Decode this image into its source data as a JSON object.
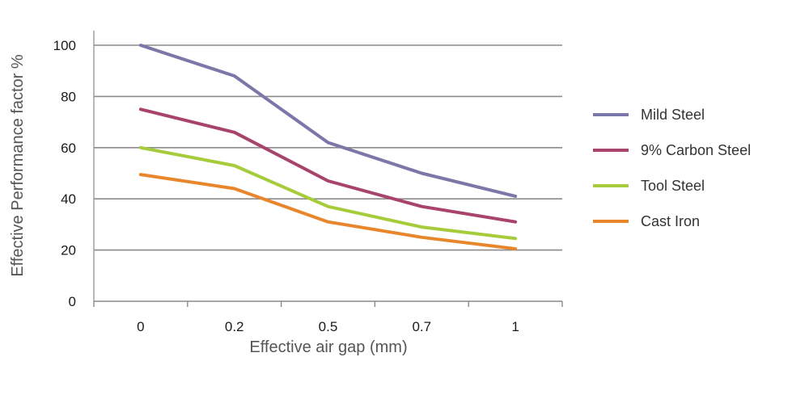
{
  "chart_data": {
    "type": "line",
    "title": "",
    "xlabel": "Effective air gap (mm)",
    "ylabel": "Effective Performance factor %",
    "categories": [
      "0",
      "0.2",
      "0.5",
      "0.7",
      "1"
    ],
    "ylim": [
      0,
      100
    ],
    "yticks": [
      0,
      20,
      40,
      60,
      80,
      100
    ],
    "grid": "horizontal",
    "legend_position": "right",
    "series": [
      {
        "name": "Mild Steel",
        "color": "#7b77a8",
        "values": [
          100,
          88,
          62,
          50,
          41
        ]
      },
      {
        "name": "9% Carbon Steel",
        "color": "#a8446c",
        "values": [
          75,
          66,
          47,
          37,
          31
        ]
      },
      {
        "name": "Tool Steel",
        "color": "#a6cc3c",
        "values": [
          60,
          53,
          37,
          29,
          24.5
        ]
      },
      {
        "name": "Cast Iron",
        "color": "#e8862c",
        "values": [
          49.5,
          44,
          31,
          25,
          20.5
        ]
      }
    ]
  }
}
